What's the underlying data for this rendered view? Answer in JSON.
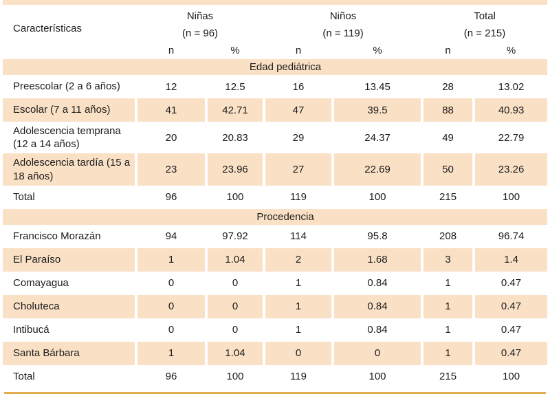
{
  "colors": {
    "row_shade": "#fae1c6",
    "top_bar": "#fae1c6",
    "bottom_line": "#e5ad52",
    "text": "#1b1b1b"
  },
  "table": {
    "header": {
      "characteristics_label": "Características",
      "groups": [
        {
          "name": "Niñas",
          "n_label": "(n = 96)"
        },
        {
          "name": "Niños",
          "n_label": "(n = 119)"
        },
        {
          "name": "Total",
          "n_label": "(n = 215)"
        }
      ],
      "col_n": "n",
      "col_pct": "%"
    },
    "sections": [
      {
        "title": "Edad pediátrica",
        "rows": [
          {
            "label": "Preescolar (2 a 6 años)",
            "shaded": false,
            "values": [
              "12",
              "12.5",
              "16",
              "13.45",
              "28",
              "13.02"
            ]
          },
          {
            "label": "Escolar (7 a 11 años)",
            "shaded": true,
            "values": [
              "41",
              "42.71",
              "47",
              "39.5",
              "88",
              "40.93"
            ]
          },
          {
            "label": "Adolescencia temprana (12 a 14 años)",
            "shaded": false,
            "values": [
              "20",
              "20.83",
              "29",
              "24.37",
              "49",
              "22.79"
            ]
          },
          {
            "label": "Adolescencia tardía (15 a 18 años)",
            "shaded": true,
            "values": [
              "23",
              "23.96",
              "27",
              "22.69",
              "50",
              "23.26"
            ]
          },
          {
            "label": "Total",
            "shaded": false,
            "values": [
              "96",
              "100",
              "119",
              "100",
              "215",
              "100"
            ]
          }
        ]
      },
      {
        "title": "Procedencia",
        "rows": [
          {
            "label": "Francisco Morazán",
            "shaded": false,
            "values": [
              "94",
              "97.92",
              "114",
              "95.8",
              "208",
              "96.74"
            ]
          },
          {
            "label": "El Paraíso",
            "shaded": true,
            "values": [
              "1",
              "1.04",
              "2",
              "1.68",
              "3",
              "1.4"
            ]
          },
          {
            "label": "Comayagua",
            "shaded": false,
            "values": [
              "0",
              "0",
              "1",
              "0.84",
              "1",
              "0.47"
            ]
          },
          {
            "label": "Choluteca",
            "shaded": true,
            "values": [
              "0",
              "0",
              "1",
              "0.84",
              "1",
              "0.47"
            ]
          },
          {
            "label": "Intibucá",
            "shaded": false,
            "values": [
              "0",
              "0",
              "1",
              "0.84",
              "1",
              "0.47"
            ]
          },
          {
            "label": "Santa Bárbara",
            "shaded": true,
            "values": [
              "1",
              "1.04",
              "0",
              "0",
              "1",
              "0.47"
            ]
          },
          {
            "label": "Total",
            "shaded": false,
            "values": [
              "96",
              "100",
              "119",
              "100",
              "215",
              "100"
            ]
          }
        ]
      }
    ]
  }
}
